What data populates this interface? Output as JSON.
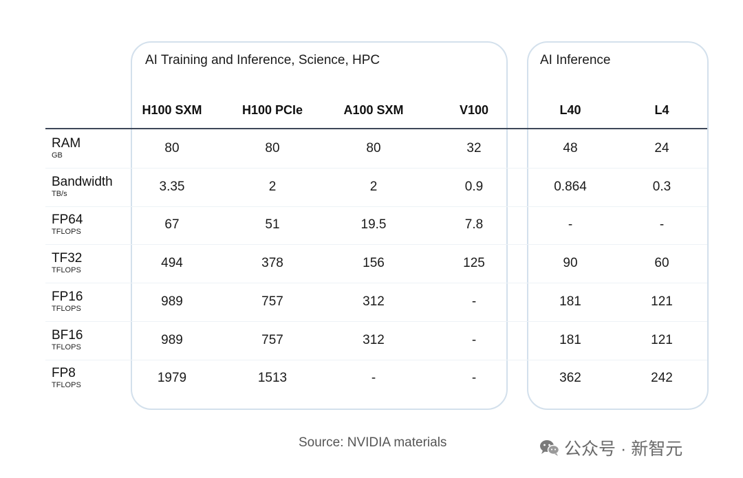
{
  "groups": {
    "training": {
      "title": "AI Training and Inference, Science, HPC"
    },
    "inference": {
      "title": "AI Inference"
    }
  },
  "columns": [
    "H100 SXM",
    "H100 PCIe",
    "A100 SXM",
    "V100",
    "L40",
    "L4"
  ],
  "rows": [
    {
      "name": "RAM",
      "unit": "GB",
      "values": [
        "80",
        "80",
        "80",
        "32",
        "48",
        "24"
      ]
    },
    {
      "name": "Bandwidth",
      "unit": "TB/s",
      "values": [
        "3.35",
        "2",
        "2",
        "0.9",
        "0.864",
        "0.3"
      ]
    },
    {
      "name": "FP64",
      "unit": "TFLOPS",
      "values": [
        "67",
        "51",
        "19.5",
        "7.8",
        "-",
        "-"
      ]
    },
    {
      "name": "TF32",
      "unit": "TFLOPS",
      "values": [
        "494",
        "378",
        "156",
        "125",
        "90",
        "60"
      ]
    },
    {
      "name": "FP16",
      "unit": "TFLOPS",
      "values": [
        "989",
        "757",
        "312",
        "-",
        "181",
        "121"
      ]
    },
    {
      "name": "BF16",
      "unit": "TFLOPS",
      "values": [
        "989",
        "757",
        "312",
        "-",
        "181",
        "121"
      ]
    },
    {
      "name": "FP8",
      "unit": "TFLOPS",
      "values": [
        "1979",
        "1513",
        "-",
        "-",
        "362",
        "242"
      ]
    }
  ],
  "footer": {
    "source": "Source: NVIDIA materials",
    "watermark": "公众号 · 新智元",
    "watermark_icon": "wechat-icon"
  }
}
